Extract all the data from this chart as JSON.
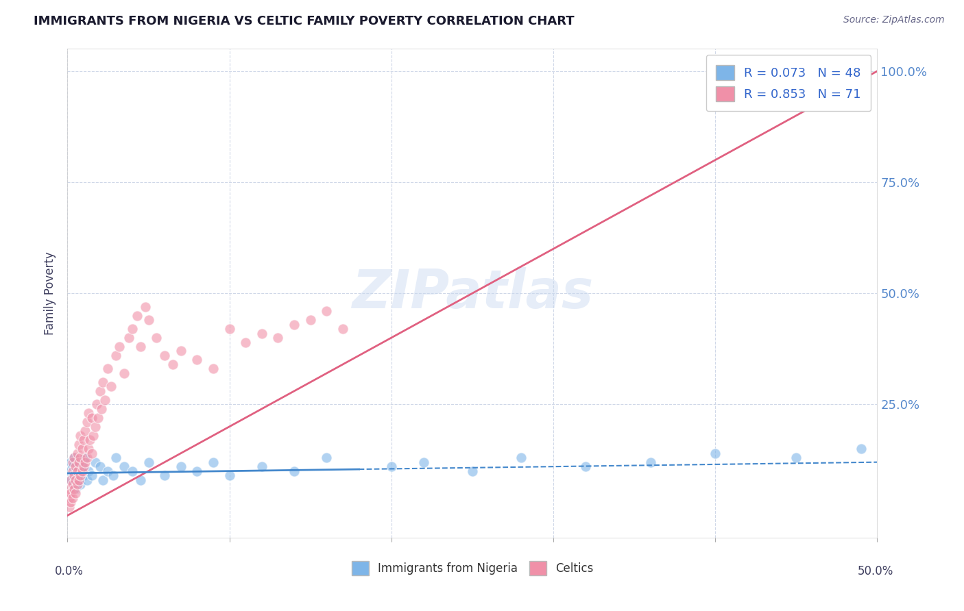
{
  "title": "IMMIGRANTS FROM NIGERIA VS CELTIC FAMILY POVERTY CORRELATION CHART",
  "source": "Source: ZipAtlas.com",
  "ylabel": "Family Poverty",
  "ytick_labels": [
    "25.0%",
    "50.0%",
    "75.0%",
    "100.0%"
  ],
  "ytick_values": [
    0.25,
    0.5,
    0.75,
    1.0
  ],
  "xlim": [
    0.0,
    0.5
  ],
  "ylim": [
    -0.05,
    1.05
  ],
  "nigeria_R": 0.073,
  "nigeria_N": 48,
  "celtics_R": 0.853,
  "celtics_N": 71,
  "nigeria_color": "#7eb5e8",
  "celtics_color": "#f090a8",
  "nigeria_line_color": "#4488cc",
  "celtics_line_color": "#e06080",
  "watermark": "ZIPatlas",
  "watermark_color": "#c8d8f0",
  "background_color": "#ffffff",
  "grid_color": "#d0d8e8",
  "title_color": "#1a1a2e",
  "axis_label_color": "#404060",
  "nigeria_scatter_x": [
    0.001,
    0.002,
    0.002,
    0.003,
    0.003,
    0.004,
    0.004,
    0.005,
    0.005,
    0.006,
    0.006,
    0.007,
    0.007,
    0.008,
    0.008,
    0.009,
    0.01,
    0.011,
    0.012,
    0.013,
    0.015,
    0.017,
    0.02,
    0.022,
    0.025,
    0.028,
    0.03,
    0.035,
    0.04,
    0.045,
    0.05,
    0.06,
    0.07,
    0.08,
    0.09,
    0.1,
    0.12,
    0.14,
    0.16,
    0.2,
    0.22,
    0.25,
    0.28,
    0.32,
    0.36,
    0.4,
    0.45,
    0.49
  ],
  "nigeria_scatter_y": [
    0.1,
    0.08,
    0.12,
    0.09,
    0.11,
    0.07,
    0.13,
    0.06,
    0.1,
    0.09,
    0.11,
    0.08,
    0.12,
    0.1,
    0.07,
    0.11,
    0.09,
    0.13,
    0.08,
    0.1,
    0.09,
    0.12,
    0.11,
    0.08,
    0.1,
    0.09,
    0.13,
    0.11,
    0.1,
    0.08,
    0.12,
    0.09,
    0.11,
    0.1,
    0.12,
    0.09,
    0.11,
    0.1,
    0.13,
    0.11,
    0.12,
    0.1,
    0.13,
    0.11,
    0.12,
    0.14,
    0.13,
    0.15
  ],
  "celtics_scatter_x": [
    0.001,
    0.001,
    0.001,
    0.002,
    0.002,
    0.002,
    0.003,
    0.003,
    0.003,
    0.003,
    0.004,
    0.004,
    0.004,
    0.005,
    0.005,
    0.005,
    0.006,
    0.006,
    0.006,
    0.007,
    0.007,
    0.007,
    0.008,
    0.008,
    0.008,
    0.009,
    0.009,
    0.01,
    0.01,
    0.011,
    0.011,
    0.012,
    0.012,
    0.013,
    0.013,
    0.014,
    0.015,
    0.015,
    0.016,
    0.017,
    0.018,
    0.019,
    0.02,
    0.021,
    0.022,
    0.023,
    0.025,
    0.027,
    0.03,
    0.032,
    0.035,
    0.038,
    0.04,
    0.043,
    0.045,
    0.048,
    0.05,
    0.055,
    0.06,
    0.065,
    0.07,
    0.08,
    0.09,
    0.1,
    0.11,
    0.12,
    0.13,
    0.14,
    0.15,
    0.16,
    0.17
  ],
  "celtics_scatter_y": [
    0.02,
    0.04,
    0.06,
    0.03,
    0.05,
    0.08,
    0.04,
    0.07,
    0.1,
    0.12,
    0.06,
    0.09,
    0.13,
    0.05,
    0.08,
    0.11,
    0.07,
    0.1,
    0.14,
    0.08,
    0.12,
    0.16,
    0.09,
    0.13,
    0.18,
    0.1,
    0.15,
    0.11,
    0.17,
    0.12,
    0.19,
    0.13,
    0.21,
    0.15,
    0.23,
    0.17,
    0.14,
    0.22,
    0.18,
    0.2,
    0.25,
    0.22,
    0.28,
    0.24,
    0.3,
    0.26,
    0.33,
    0.29,
    0.36,
    0.38,
    0.32,
    0.4,
    0.42,
    0.45,
    0.38,
    0.47,
    0.44,
    0.4,
    0.36,
    0.34,
    0.37,
    0.35,
    0.33,
    0.42,
    0.39,
    0.41,
    0.4,
    0.43,
    0.44,
    0.46,
    0.42
  ]
}
